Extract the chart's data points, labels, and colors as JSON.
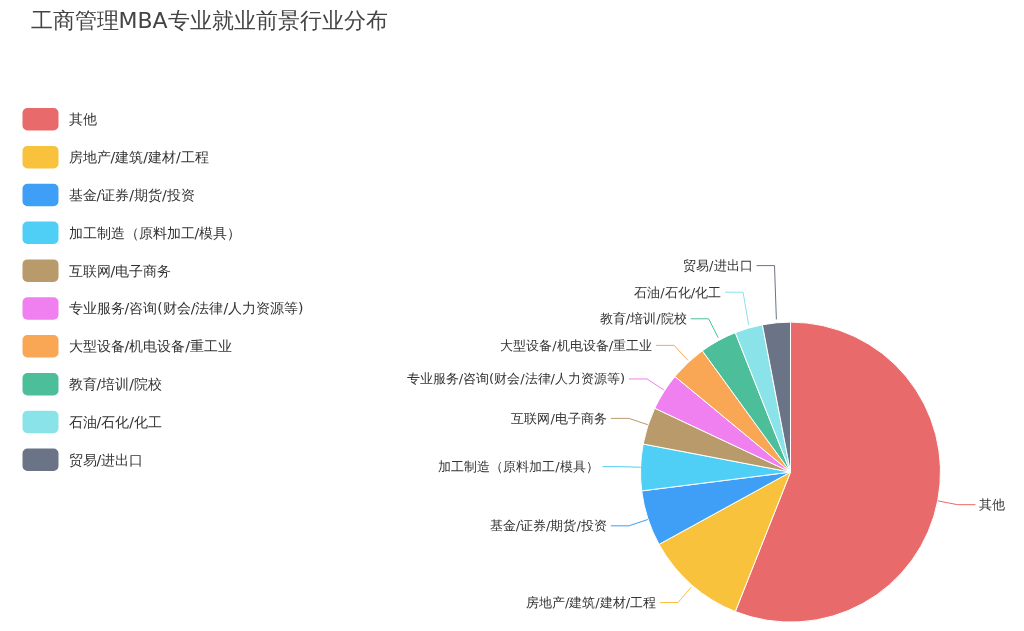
{
  "chart_data": {
    "type": "pie",
    "title": "工商管理MBA专业就业前景行业分布",
    "categories": [
      "其他",
      "房地产/建筑/建材/工程",
      "基金/证券/期货/投资",
      "加工制造（原料加工/模具）",
      "互联网/电子商务",
      "专业服务/咨询(财会/法律/人力资源等)",
      "大型设备/机电设备/重工业",
      "教育/培训/院校",
      "石油/石化/化工",
      "贸易/进出口"
    ],
    "values": [
      56,
      11,
      6,
      5,
      4,
      4,
      4,
      4,
      3,
      3
    ],
    "colors": [
      "#e86a6a",
      "#f9c23c",
      "#3f9ef5",
      "#4fcff5",
      "#b89a6b",
      "#f07ff0",
      "#f9a655",
      "#4cbf9a",
      "#8ae3e8",
      "#6b7486"
    ],
    "legend": "left"
  }
}
